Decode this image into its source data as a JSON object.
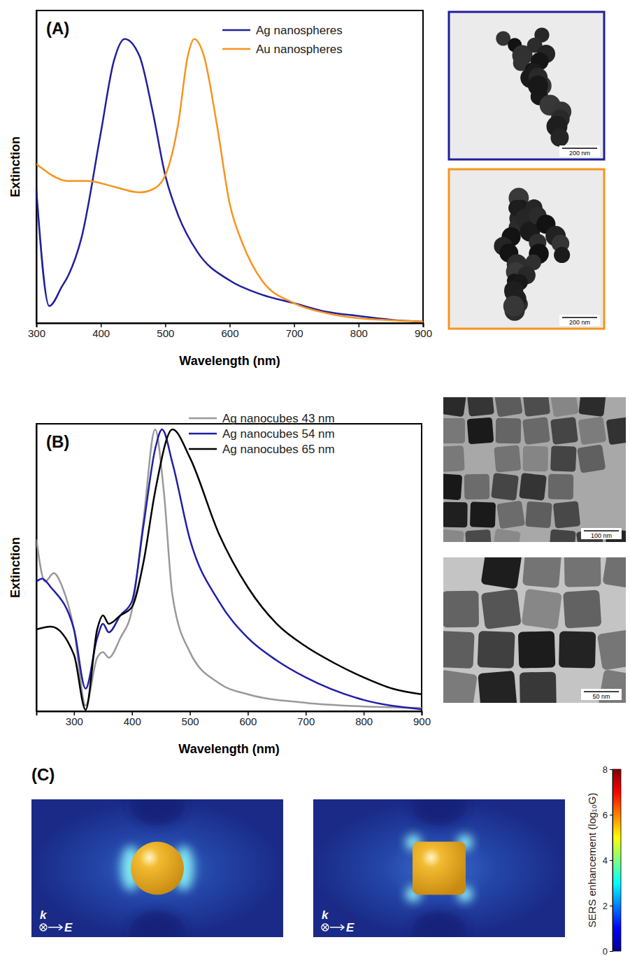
{
  "chart_data": [
    {
      "type": "line",
      "label": "(A)",
      "x_label": "Wavelength (nm)",
      "y_label": "Extinction",
      "xlim": [
        300,
        900
      ],
      "xticks": [
        300,
        400,
        500,
        600,
        700,
        800,
        900
      ],
      "ylim": [
        0,
        1.1
      ],
      "tick_labels": "x",
      "legend": "upper right",
      "series": [
        {
          "name": "Ag nanospheres",
          "color": "#1f1f9e",
          "x": [
            300,
            320,
            340,
            350,
            370,
            400,
            420,
            437,
            460,
            480,
            500,
            520,
            550,
            600,
            650,
            700,
            750,
            800,
            850,
            900
          ],
          "values": [
            0.47,
            0.06,
            0.13,
            0.17,
            0.3,
            0.67,
            0.92,
            1.0,
            0.94,
            0.75,
            0.52,
            0.38,
            0.25,
            0.15,
            0.1,
            0.07,
            0.04,
            0.025,
            0.012,
            0.005
          ]
        },
        {
          "name": "Au nanospheres",
          "color": "#f7941d",
          "x": [
            300,
            350,
            380,
            420,
            460,
            480,
            500,
            520,
            535,
            545,
            560,
            580,
            600,
            620,
            650,
            700,
            750,
            800,
            850,
            900
          ],
          "values": [
            0.56,
            0.5,
            0.5,
            0.48,
            0.46,
            0.47,
            0.52,
            0.7,
            0.94,
            1.0,
            0.94,
            0.7,
            0.42,
            0.28,
            0.15,
            0.07,
            0.035,
            0.017,
            0.01,
            0.005
          ]
        }
      ],
      "scale_bars": [
        "200 nm",
        "200 nm"
      ]
    },
    {
      "type": "line",
      "label": "(B)",
      "x_label": "Wavelength (nm)",
      "y_label": "Extinction",
      "xlim": [
        235,
        900
      ],
      "xticks": [
        300,
        400,
        500,
        600,
        700,
        800,
        900
      ],
      "ylim": [
        0,
        1.02
      ],
      "tick_labels": "x",
      "legend": "upper right",
      "series": [
        {
          "name": "Ag nanocubes 43 nm",
          "color": "#999999",
          "x": [
            235,
            250,
            265,
            280,
            300,
            320,
            340,
            350,
            360,
            380,
            400,
            420,
            440,
            455,
            470,
            500,
            550,
            600,
            700,
            800,
            900
          ],
          "values": [
            0.61,
            0.46,
            0.49,
            0.44,
            0.29,
            0.02,
            0.19,
            0.21,
            0.19,
            0.26,
            0.36,
            0.68,
            1.0,
            0.78,
            0.41,
            0.21,
            0.1,
            0.06,
            0.03,
            0.017,
            0.012
          ]
        },
        {
          "name": "Ag nanocubes 54 nm",
          "color": "#1f1fa8",
          "x": [
            235,
            245,
            260,
            300,
            320,
            340,
            350,
            360,
            380,
            400,
            420,
            440,
            452,
            470,
            500,
            550,
            600,
            650,
            700,
            800,
            900
          ],
          "values": [
            0.46,
            0.47,
            0.44,
            0.29,
            0.08,
            0.26,
            0.31,
            0.28,
            0.34,
            0.39,
            0.66,
            0.93,
            1.0,
            0.88,
            0.61,
            0.39,
            0.26,
            0.18,
            0.12,
            0.04,
            0.007
          ]
        },
        {
          "name": "Ag nanocubes 65 nm",
          "color": "#000000",
          "x": [
            235,
            260,
            300,
            320,
            340,
            350,
            360,
            380,
            400,
            420,
            440,
            470,
            500,
            550,
            600,
            650,
            700,
            750,
            800,
            850,
            900
          ],
          "values": [
            0.29,
            0.3,
            0.2,
            0.005,
            0.29,
            0.34,
            0.31,
            0.34,
            0.37,
            0.53,
            0.78,
            1.0,
            0.9,
            0.63,
            0.44,
            0.31,
            0.23,
            0.17,
            0.12,
            0.08,
            0.06
          ]
        }
      ],
      "scale_bars": [
        "100 nm",
        "50 nm"
      ]
    },
    {
      "type": "field_map",
      "label": "(C)",
      "vectors": [
        "k",
        "E"
      ],
      "colorbar": {
        "title": "SERS enhancement (log₁₀G)",
        "range": [
          0,
          8
        ],
        "ticks": [
          0,
          2,
          4,
          6,
          8
        ]
      }
    }
  ]
}
